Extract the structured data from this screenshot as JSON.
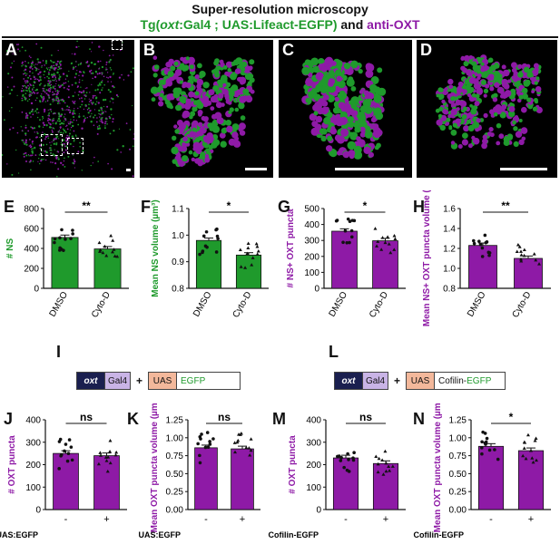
{
  "header": {
    "line1": "Super-resolution microscopy",
    "line2_prefix": "Tg(",
    "line2_gene": "oxt",
    "line2_mid": ":Gal4 ; UAS:Lifeact-EGFP)",
    "line2_and": " and ",
    "line2_anti": "anti-OXT"
  },
  "colors": {
    "green": "#1f9a2c",
    "purple": "#8e1aa6",
    "black": "#000000",
    "navy": "#1a1f4f",
    "lavender": "#c9b4e6",
    "peach": "#f3b89b"
  },
  "panels": {
    "A": "A",
    "B": "B",
    "C": "C",
    "D": "D",
    "E": "E",
    "F": "F",
    "G": "G",
    "H": "H",
    "I": "I",
    "J": "J",
    "K": "K",
    "L": "L",
    "M": "M",
    "N": "N"
  },
  "constructs": {
    "I": {
      "oxt": "oxt",
      "gal4": "Gal4",
      "plus": "+",
      "uas": "UAS",
      "reporter": "EGFP"
    },
    "L": {
      "oxt": "oxt",
      "gal4": "Gal4",
      "plus": "+",
      "uas": "UAS",
      "reporter_a": "Cofilin-",
      "reporter_b": "EGFP"
    }
  },
  "chart_data": [
    {
      "id": "E",
      "type": "bar",
      "color": "green",
      "ylabel": "# NS",
      "ylim": [
        0,
        800
      ],
      "yticks": [
        0,
        200,
        400,
        600,
        800
      ],
      "categories": [
        "DMSO",
        "Cyto-D"
      ],
      "values": [
        510,
        395
      ],
      "sig": "**"
    },
    {
      "id": "F",
      "type": "bar",
      "color": "green",
      "ylabel": "Mean NS volume (µm³)",
      "ylim": [
        0.8,
        1.1
      ],
      "yticks": [
        0.8,
        0.9,
        1.0,
        1.1
      ],
      "categories": [
        "DMSO",
        "Cyto-D"
      ],
      "values": [
        0.98,
        0.925
      ],
      "sig": "*"
    },
    {
      "id": "G",
      "type": "bar",
      "color": "purple",
      "ylabel": "# NS+ OXT puncta",
      "ylim": [
        0,
        500
      ],
      "yticks": [
        0,
        100,
        200,
        300,
        400,
        500
      ],
      "categories": [
        "DMSO",
        "Cyto-D"
      ],
      "values": [
        358,
        298
      ],
      "sig": "*"
    },
    {
      "id": "H",
      "type": "bar",
      "color": "purple",
      "ylabel": "Mean NS+ OXT puncta volume (µm³)",
      "ylim": [
        0.8,
        1.6
      ],
      "yticks": [
        0.8,
        1.0,
        1.2,
        1.4,
        1.6
      ],
      "categories": [
        "DMSO",
        "Cyto-D"
      ],
      "values": [
        1.23,
        1.1
      ],
      "sig": "**"
    },
    {
      "id": "J",
      "type": "bar",
      "color": "purple",
      "ylabel": "# OXT puncta",
      "ylim": [
        0,
        400
      ],
      "yticks": [
        0,
        100,
        200,
        300,
        400
      ],
      "categories": [
        "-",
        "+"
      ],
      "group_label": "UAS:EGFP",
      "values": [
        250,
        240
      ],
      "sig": "ns"
    },
    {
      "id": "K",
      "type": "bar",
      "color": "purple",
      "ylabel": "Mean OXT puncta volume (µm³)",
      "ylim": [
        0,
        1.25
      ],
      "yticks": [
        0,
        0.25,
        0.5,
        0.75,
        1.0,
        1.25
      ],
      "categories": [
        "-",
        "+"
      ],
      "group_label": "UAS:EGFP",
      "values": [
        0.86,
        0.845
      ],
      "sig": "ns"
    },
    {
      "id": "M",
      "type": "bar",
      "color": "purple",
      "ylabel": "# OXT puncta",
      "ylim": [
        0,
        400
      ],
      "yticks": [
        0,
        100,
        200,
        300,
        400
      ],
      "categories": [
        "-",
        "+"
      ],
      "group_label": "UAS:Cofilin-EGFP",
      "values": [
        230,
        205
      ],
      "sig": "ns"
    },
    {
      "id": "N",
      "type": "bar",
      "color": "purple",
      "ylabel": "Mean OXT puncta volume (µm³)",
      "ylim": [
        0,
        1.25
      ],
      "yticks": [
        0,
        0.25,
        0.5,
        0.75,
        1.0,
        1.25
      ],
      "categories": [
        "-",
        "+"
      ],
      "group_label": "UAS:Cofilin-EGFP",
      "values": [
        0.88,
        0.82
      ],
      "sig": "*"
    }
  ]
}
